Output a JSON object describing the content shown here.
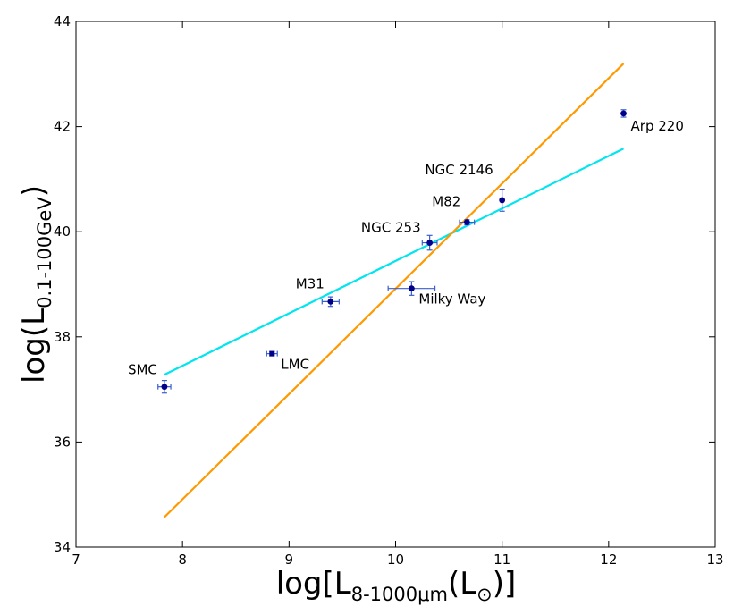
{
  "chart_data": {
    "type": "scatter",
    "title": "",
    "xlabel": {
      "main": "log[L",
      "sub": "8-1000μm",
      "tail": "(L",
      "sun": "⊙",
      "close": ")]"
    },
    "ylabel": {
      "main": "log(L",
      "sub": "0.1-100GeV",
      "close": ")"
    },
    "xlim": [
      7,
      13
    ],
    "ylim": [
      34,
      44
    ],
    "xticks": [
      7,
      8,
      9,
      10,
      11,
      12,
      13
    ],
    "yticks": [
      34,
      36,
      38,
      40,
      42,
      44
    ],
    "grid": false,
    "colors": {
      "points": "#00008b",
      "errorbars": "#3a5fcd",
      "fit_cyan": "#00e5ee",
      "fit_orange": "#ff9900"
    },
    "points": [
      {
        "label": "SMC",
        "x": 7.83,
        "y": 37.05,
        "xerr": 0.06,
        "yerr": 0.12
      },
      {
        "label": "LMC",
        "x": 8.84,
        "y": 37.68,
        "xerr": 0.05,
        "yerr": 0.04
      },
      {
        "label": "M31",
        "x": 9.39,
        "y": 38.67,
        "xerr": 0.08,
        "yerr": 0.09
      },
      {
        "label": "Milky Way",
        "x": 10.15,
        "y": 38.92,
        "xerr": 0.22,
        "yerr": 0.13
      },
      {
        "label": "NGC 253",
        "x": 10.32,
        "y": 39.79,
        "xerr": 0.07,
        "yerr": 0.14
      },
      {
        "label": "M82",
        "x": 10.67,
        "y": 40.18,
        "xerr": 0.07,
        "yerr": 0.05
      },
      {
        "label": "NGC 2146",
        "x": 11.0,
        "y": 40.6,
        "xerr": 0.0,
        "yerr": 0.21
      },
      {
        "label": "Arp 220",
        "x": 12.14,
        "y": 42.25,
        "xerr": 0.0,
        "yerr": 0.07
      }
    ],
    "fits": [
      {
        "name": "cyan fit",
        "color": "#00e5ee",
        "x": [
          7.83,
          12.14
        ],
        "y": [
          37.28,
          41.58
        ]
      },
      {
        "name": "orange fit",
        "color": "#ff9900",
        "x": [
          7.83,
          12.14
        ],
        "y": [
          34.57,
          43.2
        ]
      }
    ]
  }
}
